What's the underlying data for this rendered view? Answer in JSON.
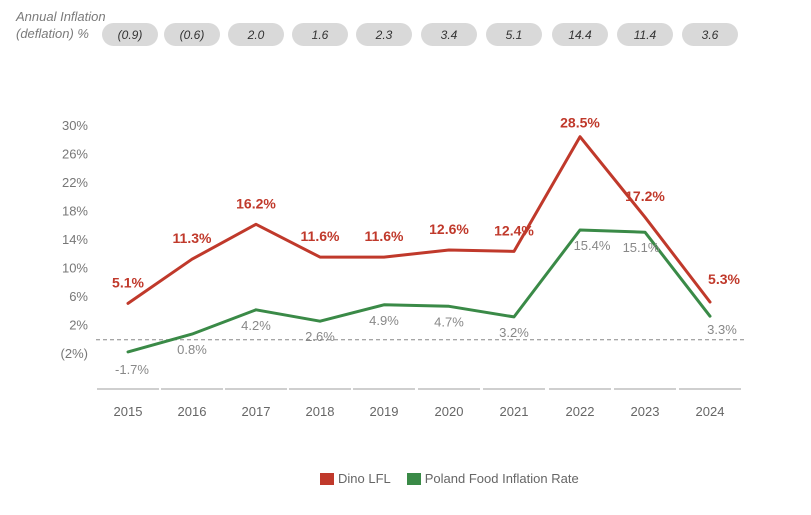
{
  "inflation_header": {
    "title": "Annual Inflation (deflation) %",
    "values": [
      "(0.9)",
      "(0.6)",
      "2.0",
      "1.6",
      "2.3",
      "3.4",
      "5.1",
      "14.4",
      "11.4",
      "3.6"
    ],
    "pill_color": "#d9d9d9"
  },
  "chart_data": {
    "type": "line",
    "x": [
      "2015",
      "2016",
      "2017",
      "2018",
      "2019",
      "2020",
      "2021",
      "2022",
      "2023",
      "2024"
    ],
    "y_ticks": [
      "30%",
      "26%",
      "22%",
      "18%",
      "14%",
      "10%",
      "6%",
      "2%",
      "(2%)"
    ],
    "ylim": [
      -2,
      30
    ],
    "reference_line": 0,
    "series": [
      {
        "name": "Dino LFL",
        "color": "#c0392b",
        "values": [
          5.1,
          11.3,
          16.2,
          11.6,
          11.6,
          12.6,
          12.4,
          28.5,
          17.2,
          5.3
        ],
        "labels": [
          "5.1%",
          "11.3%",
          "16.2%",
          "11.6%",
          "11.6%",
          "12.6%",
          "12.4%",
          "28.5%",
          "17.2%",
          "5.3%"
        ]
      },
      {
        "name": "Poland Food Inflation Rate",
        "color": "#3a8a47",
        "values": [
          -1.7,
          0.8,
          4.2,
          2.6,
          4.9,
          4.7,
          3.2,
          15.4,
          15.1,
          3.3
        ],
        "labels": [
          "-1.7%",
          "0.8%",
          "4.2%",
          "2.6%",
          "4.9%",
          "4.7%",
          "3.2%",
          "15.4%",
          "15.1%",
          "3.3%"
        ]
      }
    ],
    "legend": {
      "placement": "bottom-center"
    }
  }
}
